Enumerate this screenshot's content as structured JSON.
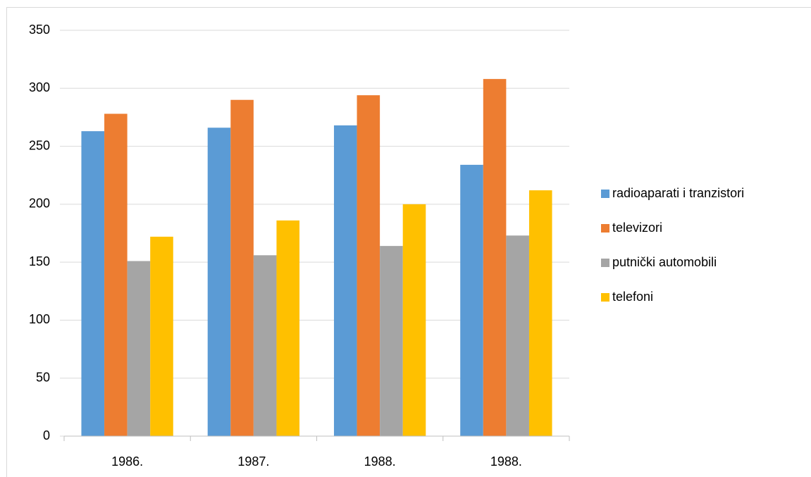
{
  "chart_data": {
    "type": "bar",
    "categories": [
      "1986.",
      "1987.",
      "1988.",
      "1988."
    ],
    "series": [
      {
        "name": "radioaparati i tranzistori",
        "color": "#5b9bd5",
        "values": [
          263,
          266,
          268,
          234
        ]
      },
      {
        "name": "televizori",
        "color": "#ed7d31",
        "values": [
          278,
          290,
          294,
          308
        ]
      },
      {
        "name": "putnički automobili",
        "color": "#a5a5a5",
        "values": [
          151,
          156,
          164,
          173
        ]
      },
      {
        "name": "telefoni",
        "color": "#ffc000",
        "values": [
          172,
          186,
          200,
          212
        ]
      }
    ],
    "ylim": [
      0,
      350
    ],
    "yticks": [
      0,
      50,
      100,
      150,
      200,
      250,
      300,
      350
    ],
    "grid": true,
    "legend": "right"
  }
}
